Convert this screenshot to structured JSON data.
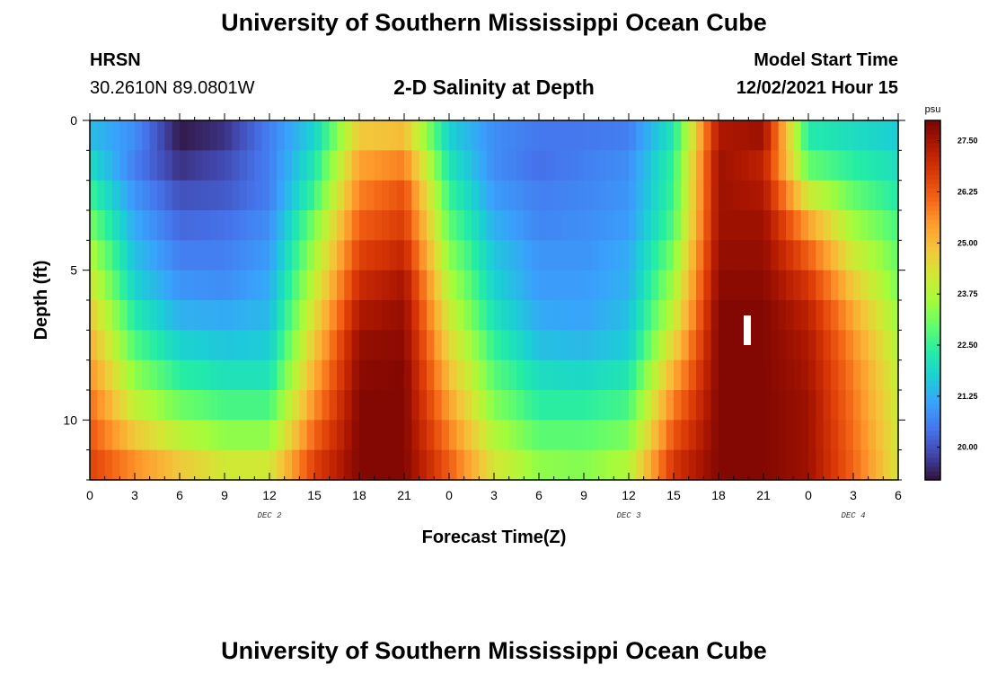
{
  "header": {
    "title": "University of Southern Mississippi Ocean Cube",
    "station": "HRSN",
    "coords": "30.2610N  89.0801W",
    "model_start_label": "Model Start Time",
    "model_start_value": "12/02/2021 Hour 15"
  },
  "footer": {
    "title": "University of Southern Mississippi Ocean Cube"
  },
  "colors": {
    "colormap": [
      "#30123b",
      "#4145ab",
      "#4675ed",
      "#39a2fc",
      "#1bcfd4",
      "#24eca6",
      "#61fc6c",
      "#a4fc3b",
      "#d1e834",
      "#f3c63a",
      "#fe9b2d",
      "#f36315",
      "#d93806",
      "#b11901",
      "#7a0402"
    ],
    "marker": "#ffffff"
  },
  "chart_data": {
    "type": "heatmap",
    "title": "2-D Salinity at Depth",
    "xlabel": "Forecast Time(Z)",
    "ylabel": "Depth (ft)",
    "x_range_hours": [
      0,
      54
    ],
    "y_range_ft": [
      0,
      12
    ],
    "x_tick_labels": [
      "0",
      "3",
      "6",
      "9",
      "12",
      "15",
      "18",
      "21",
      "0",
      "3",
      "6",
      "9",
      "12",
      "15",
      "18",
      "21",
      "0",
      "3",
      "6"
    ],
    "y_ticks": [
      0,
      5,
      10
    ],
    "y_tick_labels": [
      "0",
      "5",
      "10"
    ],
    "day_labels": [
      {
        "label": "DEC 2",
        "hour": 12
      },
      {
        "label": "DEC 3",
        "hour": 36
      },
      {
        "label": "DEC 4",
        "hour": 51
      }
    ],
    "colorbar": {
      "unit": "psu",
      "min": 19.2,
      "max": 28.0,
      "tick_values": [
        27.5,
        26.25,
        25.0,
        23.75,
        22.5,
        21.25,
        20.0
      ],
      "tick_labels": [
        "27.50",
        "26.25",
        "25.00",
        "23.75",
        "22.50",
        "21.25",
        "20.00"
      ]
    },
    "depth_levels_ft": [
      0.5,
      1.5,
      2.5,
      3.5,
      4.5,
      5.5,
      6.5,
      7.5,
      8.5,
      9.5,
      10.5,
      11.5
    ],
    "time_hours": [
      0,
      3,
      6,
      9,
      12,
      15,
      18,
      21,
      24,
      27,
      30,
      33,
      36,
      39,
      42,
      45,
      48,
      51,
      54
    ],
    "salinity_psu": [
      [
        21.5,
        20.8,
        19.3,
        19.6,
        20.6,
        21.8,
        24.8,
        25.0,
        21.8,
        20.8,
        20.5,
        20.5,
        20.6,
        22.2,
        27.4,
        27.6,
        22.3,
        22.0,
        21.7
      ],
      [
        22.0,
        20.6,
        19.6,
        19.9,
        20.6,
        22.2,
        25.4,
        25.8,
        22.2,
        20.8,
        20.4,
        20.6,
        20.8,
        22.5,
        27.6,
        27.2,
        23.0,
        22.4,
        22.0
      ],
      [
        22.6,
        20.9,
        20.0,
        20.1,
        20.6,
        22.6,
        25.8,
        26.4,
        22.6,
        21.0,
        20.6,
        20.7,
        20.9,
        22.6,
        27.6,
        27.4,
        24.2,
        23.0,
        22.3
      ],
      [
        23.2,
        21.2,
        20.3,
        20.4,
        20.8,
        23.2,
        26.2,
        26.7,
        23.0,
        21.3,
        20.7,
        20.8,
        21.0,
        22.8,
        27.6,
        27.6,
        25.4,
        23.6,
        22.7
      ],
      [
        23.8,
        21.5,
        20.6,
        20.6,
        21.0,
        23.6,
        26.6,
        27.1,
        23.4,
        21.6,
        20.9,
        20.9,
        21.2,
        23.2,
        27.7,
        27.7,
        26.2,
        24.2,
        23.0
      ],
      [
        24.3,
        21.8,
        20.9,
        20.8,
        21.2,
        24.0,
        27.0,
        27.5,
        23.8,
        21.8,
        21.0,
        21.0,
        21.3,
        23.6,
        27.8,
        27.8,
        26.8,
        24.8,
        23.2
      ],
      [
        24.8,
        22.3,
        21.3,
        21.2,
        21.4,
        24.4,
        27.4,
        27.7,
        24.2,
        22.1,
        21.2,
        21.1,
        21.5,
        24.0,
        27.9,
        27.9,
        27.2,
        25.3,
        23.5
      ],
      [
        25.2,
        22.8,
        21.8,
        21.6,
        21.7,
        24.8,
        27.7,
        27.8,
        24.6,
        22.5,
        21.5,
        21.4,
        21.7,
        24.6,
        27.9,
        27.9,
        27.4,
        25.6,
        23.8
      ],
      [
        25.6,
        23.4,
        22.4,
        22.1,
        22.1,
        25.2,
        27.8,
        27.9,
        25.0,
        22.9,
        22.0,
        21.9,
        22.2,
        25.2,
        27.9,
        27.9,
        27.5,
        25.8,
        24.0
      ],
      [
        26.0,
        24.0,
        23.1,
        22.7,
        22.7,
        25.6,
        27.9,
        27.9,
        25.4,
        23.3,
        22.4,
        22.4,
        22.7,
        25.8,
        27.9,
        27.9,
        27.6,
        25.9,
        24.1
      ],
      [
        26.3,
        24.8,
        23.9,
        23.4,
        23.4,
        26.1,
        27.9,
        27.9,
        25.8,
        23.8,
        22.9,
        22.9,
        23.2,
        26.3,
        27.9,
        27.9,
        27.6,
        26.0,
        24.2
      ],
      [
        26.6,
        25.6,
        24.8,
        24.2,
        24.2,
        26.6,
        27.9,
        27.9,
        26.2,
        24.3,
        23.4,
        23.3,
        23.8,
        26.8,
        27.9,
        27.9,
        27.6,
        26.1,
        24.3
      ]
    ]
  }
}
